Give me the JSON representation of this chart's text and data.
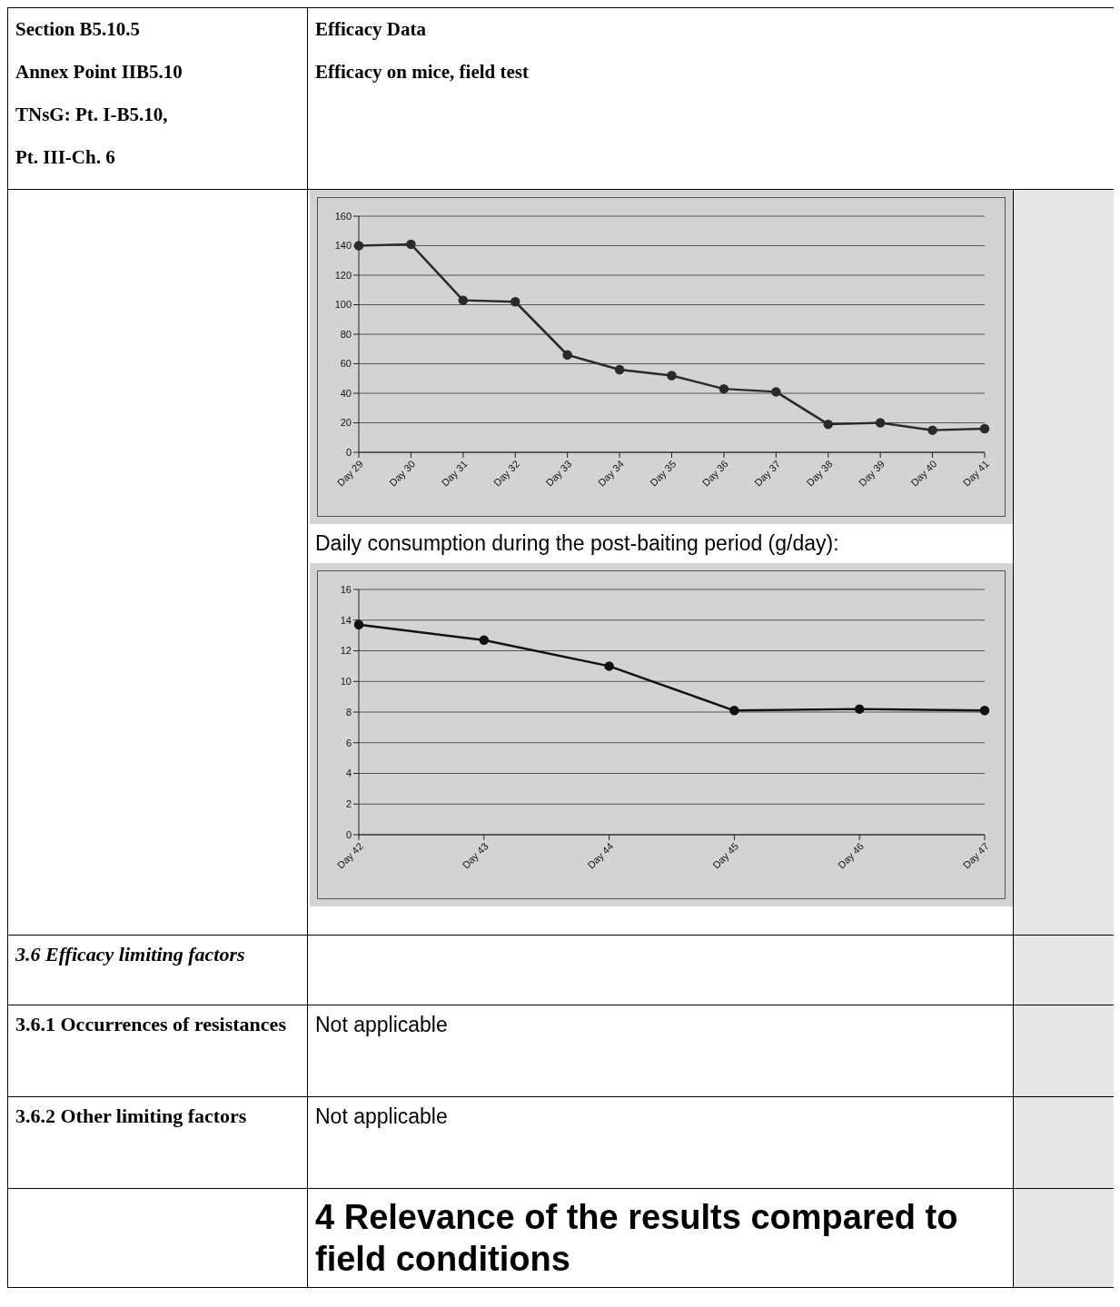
{
  "chart_data": [
    {
      "type": "line",
      "annotations": [
        "Section B5.10.5",
        "Annex Point IIB5.10",
        "TNsG: Pt. I-B5.10,",
        "Pt. III-Ch. 6",
        "Efficacy Data",
        "Efficacy on mice, field test"
      ],
      "categories": [
        "Day 29",
        "Day 30",
        "Day 31",
        "Day 32",
        "Day 33",
        "Day 34",
        "Day 35",
        "Day 36",
        "Day 37",
        "Day 38",
        "Day 39",
        "Day 40",
        "Day 41"
      ],
      "series": [
        {
          "color": "#2a2a2a",
          "values": [
            140,
            141,
            103,
            102,
            66,
            56,
            52,
            43,
            41,
            19,
            20,
            15,
            16
          ]
        }
      ],
      "ylim": [
        0,
        160
      ],
      "yticks": [
        0,
        20,
        40,
        60,
        80,
        100,
        120,
        140,
        160
      ],
      "grid": "y",
      "legend": false,
      "marker": "circle",
      "line_style": "solid"
    },
    {
      "type": "line",
      "title": "Daily consumption during the post-baiting period (g/day):",
      "annotations": [
        "3.6 Efficacy limiting factors",
        "3.6.1 Occurrences of resistances",
        "Not applicable",
        "3.6.2 Other limiting factors",
        "Not applicable",
        "4 Relevance of the results compared to field conditions"
      ],
      "categories": [
        "Day 42",
        "Day 43",
        "Day 44",
        "Day 45",
        "Day 46",
        "Day 47"
      ],
      "series": [
        {
          "color": "#111111",
          "values": [
            13.7,
            12.7,
            11,
            8.1,
            8.2,
            8.1
          ]
        }
      ],
      "ylim": [
        0,
        16
      ],
      "yticks": [
        0,
        2,
        4,
        6,
        8,
        10,
        12,
        14,
        16
      ],
      "grid": "y",
      "legend": false,
      "marker": "circle",
      "line_style": "solid"
    }
  ]
}
